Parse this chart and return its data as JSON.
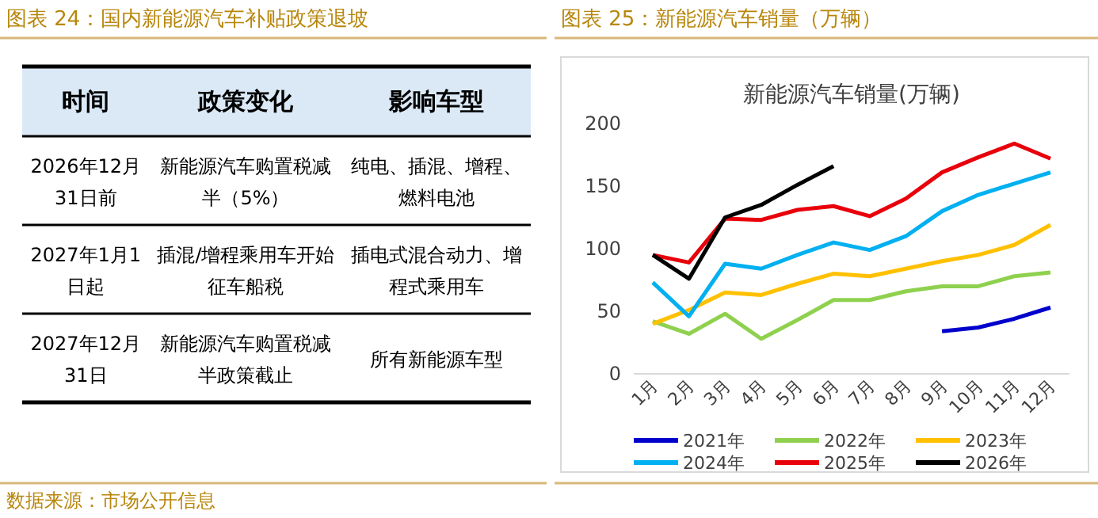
{
  "chart_data": [
    {
      "type": "other",
      "title": "图表 24：国内新能源汽车补贴政策退坡",
      "categories": [
        "时间",
        "政策变化",
        "影响车型"
      ],
      "cell_labels": [
        [
          "2026年12月31日前",
          "新能源汽车购置税减半（5%）",
          "纯电、插混、增程、燃料电池"
        ],
        [
          "2027年1月1日起",
          "插混/增程乘用车开始征车船税",
          "插电式混合动力、增程式乘用车"
        ],
        [
          "2027年12月31日",
          "新能源汽车购置税减半政策截止",
          "所有新能源车型"
        ]
      ],
      "annotations": [
        "数据来源：市场公开信息"
      ]
    },
    {
      "type": "line",
      "title": "图表 25：新能源汽车销量（万辆）",
      "subtitle": "新能源汽车销量(万辆)",
      "categories": [
        "1月",
        "2月",
        "3月",
        "4月",
        "5月",
        "6月",
        "7月",
        "8月",
        "9月",
        "10月",
        "11月",
        "12月"
      ],
      "ylim": [
        0,
        200
      ],
      "yticks": [
        0,
        50,
        100,
        150,
        200
      ],
      "grid": false,
      "legend": "bottom",
      "series": [
        {
          "name": "2021年",
          "color": "#0000cc",
          "values": [
            null,
            null,
            null,
            null,
            null,
            null,
            null,
            null,
            34,
            37,
            44,
            53
          ]
        },
        {
          "name": "2022年",
          "color": "#8fd14f",
          "values": [
            42,
            32,
            48,
            28,
            43,
            59,
            59,
            66,
            70,
            70,
            78,
            81
          ]
        },
        {
          "name": "2023年",
          "color": "#ffc000",
          "values": [
            40,
            51,
            65,
            63,
            72,
            80,
            78,
            84,
            90,
            95,
            103,
            119
          ]
        },
        {
          "name": "2024年",
          "color": "#00b0f0",
          "values": [
            73,
            46,
            88,
            84,
            95,
            105,
            99,
            110,
            130,
            143,
            152,
            161
          ]
        },
        {
          "name": "2025年",
          "color": "#e8000b",
          "values": [
            95,
            89,
            124,
            123,
            131,
            134,
            126,
            140,
            161,
            173,
            184,
            172
          ]
        },
        {
          "name": "2026年",
          "color": "#000000",
          "values": [
            95,
            76,
            125,
            135,
            151,
            166,
            null,
            null,
            null,
            null,
            null,
            null
          ]
        }
      ]
    }
  ]
}
